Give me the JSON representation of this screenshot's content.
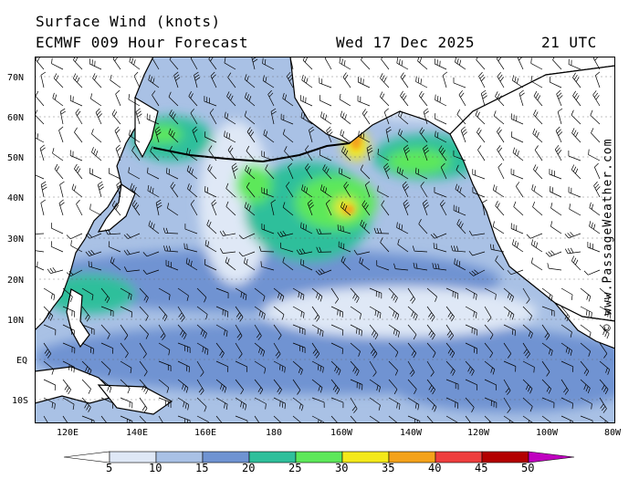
{
  "header": {
    "title": "Surface Wind (knots)",
    "model": "ECMWF 009 Hour Forecast",
    "date": "Wed 17 Dec 2025",
    "time": "21 UTC"
  },
  "credit": "© www.PassageWeather.com",
  "axes": {
    "lat_labels": [
      "70N",
      "60N",
      "50N",
      "40N",
      "30N",
      "20N",
      "10N",
      "EQ",
      "10S"
    ],
    "lon_labels": [
      "120E",
      "140E",
      "160E",
      "180",
      "160W",
      "140W",
      "120W",
      "100W",
      "80W"
    ]
  },
  "legend": {
    "ticks": [
      "5",
      "10",
      "15",
      "20",
      "25",
      "30",
      "35",
      "40",
      "45",
      "50"
    ],
    "colors": [
      "#ffffff",
      "#dfe8f6",
      "#a9c1e5",
      "#6f93d2",
      "#2fbf9b",
      "#5de85a",
      "#f4e91a",
      "#f4a21a",
      "#ee3e3e",
      "#b30000",
      "#c000c0"
    ]
  },
  "palette": {
    "ocean_low": "#d6e1f2",
    "ocean_mid": "#a9c1e5",
    "ocean_high": "#6f93d2",
    "land": "#ffffff",
    "strong": "#2fbf9b",
    "gale": "#5de85a",
    "storm": "#f4e91a",
    "extreme": "#f4a21a"
  }
}
